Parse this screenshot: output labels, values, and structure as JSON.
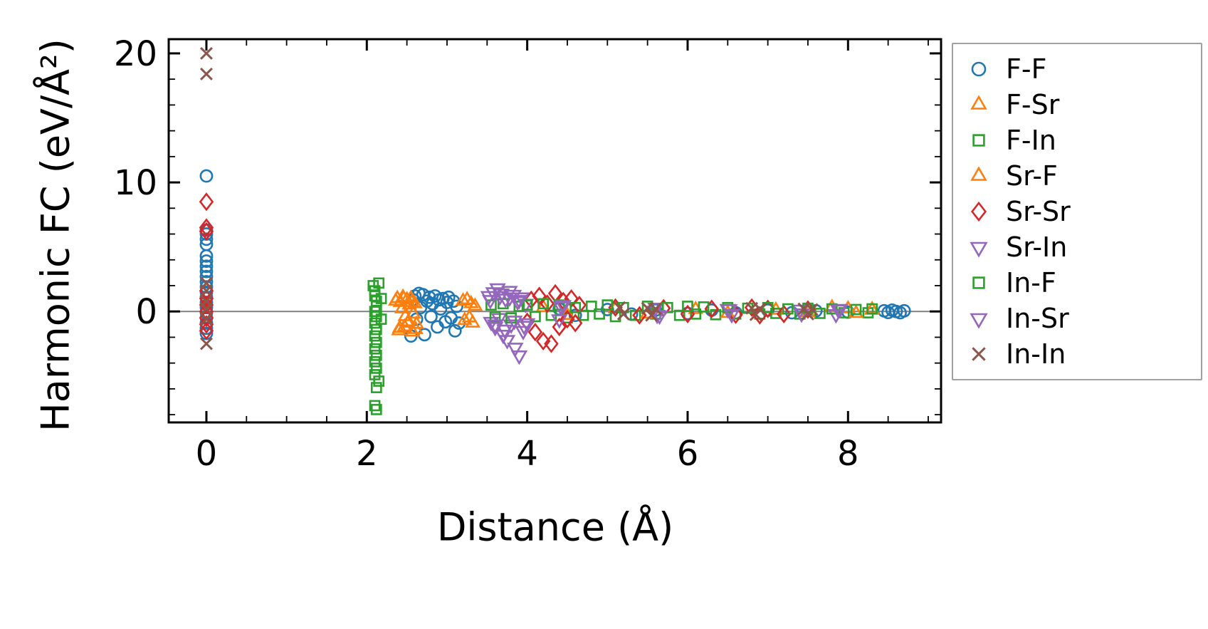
{
  "figure": {
    "background": "#ffffff",
    "axes": {
      "spine_color": "#000000",
      "tick_color": "#000000"
    }
  },
  "chart_data": {
    "type": "scatter",
    "title": "",
    "xlabel": "Distance (Å)",
    "ylabel": "Harmonic FC (eV/Å²)",
    "xlim": [
      -0.47,
      9.16
    ],
    "ylim": [
      -8.6,
      21.1
    ],
    "xticks": [
      0,
      2,
      4,
      6,
      8
    ],
    "yticks": [
      0,
      10,
      20
    ],
    "xticks_minor": [
      0.5,
      1.0,
      1.5,
      2.5,
      3.0,
      3.5,
      4.5,
      5.0,
      5.5,
      6.5,
      7.0,
      7.5,
      8.5,
      9.0
    ],
    "yticks_minor": [
      -8,
      -6,
      -4,
      -2,
      2,
      4,
      6,
      8,
      12,
      14,
      16,
      18
    ],
    "grid": false,
    "legend_position": "outside-right",
    "zero_line": {
      "y": 0,
      "color": "#808080"
    },
    "series": [
      {
        "name": "F-F",
        "marker": "circle",
        "color": "#1f77b4",
        "size": 18,
        "points": [
          [
            0,
            10.5
          ],
          [
            0,
            6.3
          ],
          [
            0,
            6.0
          ],
          [
            0,
            5.6
          ],
          [
            0,
            5.2
          ],
          [
            0,
            4.3
          ],
          [
            0,
            3.9
          ],
          [
            0,
            3.5
          ],
          [
            0,
            3.1
          ],
          [
            0,
            2.7
          ],
          [
            0,
            2.3
          ],
          [
            0,
            1.9
          ],
          [
            0,
            1.5
          ],
          [
            0,
            1.1
          ],
          [
            0,
            0.7
          ],
          [
            0,
            0.3
          ],
          [
            0,
            -0.1
          ],
          [
            0,
            -0.5
          ],
          [
            0,
            -0.9
          ],
          [
            0,
            -1.3
          ],
          [
            0,
            -1.7
          ],
          [
            2.55,
            -1.9
          ],
          [
            2.58,
            0.9
          ],
          [
            2.6,
            1.2
          ],
          [
            2.62,
            -0.6
          ],
          [
            2.65,
            1.4
          ],
          [
            2.67,
            0.3
          ],
          [
            2.7,
            1.3
          ],
          [
            2.72,
            -1.8
          ],
          [
            2.75,
            0.8
          ],
          [
            2.78,
            1.1
          ],
          [
            2.8,
            -0.4
          ],
          [
            2.82,
            0.6
          ],
          [
            2.85,
            1.2
          ],
          [
            2.88,
            -1.2
          ],
          [
            2.9,
            0.9
          ],
          [
            2.92,
            0.2
          ],
          [
            2.95,
            1.0
          ],
          [
            2.98,
            -0.8
          ],
          [
            3.0,
            0.7
          ],
          [
            3.02,
            1.1
          ],
          [
            3.05,
            -0.5
          ],
          [
            3.08,
            0.8
          ],
          [
            3.1,
            -1.5
          ],
          [
            3.12,
            0.4
          ],
          [
            3.15,
            -0.9
          ],
          [
            4.4,
            0.2
          ],
          [
            4.6,
            -0.3
          ],
          [
            5.0,
            0.15
          ],
          [
            5.3,
            -0.2
          ],
          [
            5.6,
            0.1
          ],
          [
            6.0,
            -0.15
          ],
          [
            6.3,
            0.1
          ],
          [
            6.6,
            -0.1
          ],
          [
            7.0,
            0.1
          ],
          [
            7.3,
            -0.1
          ],
          [
            7.6,
            0.05
          ],
          [
            8.0,
            -0.05
          ],
          [
            8.45,
            0.05
          ],
          [
            8.5,
            -0.08
          ],
          [
            8.55,
            0.1
          ],
          [
            8.6,
            0.0
          ],
          [
            8.65,
            -0.1
          ],
          [
            8.7,
            0.05
          ]
        ]
      },
      {
        "name": "F-Sr",
        "marker": "triangle-up",
        "color": "#ff7f0e",
        "size": 20,
        "points": [
          [
            2.38,
            1.0
          ],
          [
            2.4,
            -1.5
          ],
          [
            2.42,
            0.7
          ],
          [
            2.44,
            0.2
          ],
          [
            2.45,
            1.1
          ],
          [
            2.47,
            -1.2
          ],
          [
            2.48,
            -0.4
          ],
          [
            2.5,
            0.9
          ],
          [
            2.52,
            -0.8
          ],
          [
            2.53,
            0.5
          ],
          [
            2.55,
            1.0
          ],
          [
            2.57,
            -1.6
          ],
          [
            2.58,
            -0.2
          ],
          [
            2.6,
            0.6
          ],
          [
            2.62,
            -1.0
          ],
          [
            4.2,
            0.3
          ],
          [
            5.1,
            0.2
          ],
          [
            6.1,
            0.15
          ],
          [
            7.1,
            0.1
          ],
          [
            7.8,
            0.3
          ],
          [
            8.0,
            0.2
          ],
          [
            8.3,
            0.1
          ]
        ]
      },
      {
        "name": "F-In",
        "marker": "square",
        "color": "#2ca02c",
        "size": 16,
        "points": [
          [
            2.08,
            2.0
          ],
          [
            2.1,
            1.6
          ],
          [
            2.1,
            1.2
          ],
          [
            2.12,
            0.8
          ],
          [
            2.12,
            0.4
          ],
          [
            2.1,
            0.0
          ],
          [
            2.12,
            -0.4
          ],
          [
            2.1,
            -0.9
          ],
          [
            2.12,
            -1.4
          ],
          [
            2.1,
            -1.9
          ],
          [
            2.12,
            -2.4
          ],
          [
            2.1,
            -2.9
          ],
          [
            2.12,
            -3.4
          ],
          [
            2.1,
            -3.9
          ],
          [
            2.12,
            -4.4
          ],
          [
            2.1,
            -4.9
          ],
          [
            2.15,
            -5.4
          ],
          [
            2.12,
            -5.9
          ],
          [
            2.1,
            -7.3
          ],
          [
            2.12,
            -7.6
          ],
          [
            2.15,
            2.2
          ],
          [
            2.18,
            1.0
          ],
          [
            2.18,
            -0.6
          ],
          [
            3.55,
            0.5
          ],
          [
            3.7,
            0.6
          ],
          [
            3.9,
            0.4
          ],
          [
            4.1,
            -0.4
          ],
          [
            4.3,
            -0.3
          ],
          [
            4.5,
            -0.5
          ],
          [
            4.7,
            -0.3
          ],
          [
            4.9,
            -0.2
          ],
          [
            5.1,
            -0.4
          ],
          [
            5.35,
            -0.3
          ],
          [
            5.6,
            -0.2
          ],
          [
            5.9,
            -0.3
          ],
          [
            6.1,
            -0.2
          ],
          [
            6.35,
            -0.25
          ],
          [
            6.6,
            -0.2
          ],
          [
            6.9,
            -0.2
          ],
          [
            7.1,
            -0.15
          ],
          [
            7.4,
            -0.2
          ],
          [
            7.65,
            -0.15
          ],
          [
            7.95,
            -0.1
          ],
          [
            8.25,
            -0.1
          ]
        ]
      },
      {
        "name": "Sr-F",
        "marker": "triangle-up",
        "color": "#ff7f0e",
        "size": 20,
        "points": [
          [
            2.36,
            0.8
          ],
          [
            2.41,
            -1.3
          ],
          [
            2.46,
            1.0
          ],
          [
            2.51,
            -0.9
          ],
          [
            2.56,
            0.7
          ],
          [
            2.61,
            -1.4
          ],
          [
            3.2,
            0.8
          ],
          [
            3.22,
            -0.7
          ],
          [
            3.25,
            0.9
          ],
          [
            3.28,
            -0.5
          ],
          [
            3.3,
            0.6
          ],
          [
            3.32,
            -0.9
          ],
          [
            3.35,
            0.4
          ],
          [
            4.5,
            -0.3
          ],
          [
            5.5,
            -0.2
          ],
          [
            6.5,
            -0.15
          ],
          [
            7.5,
            -0.1
          ],
          [
            8.1,
            -0.15
          ],
          [
            8.3,
            0.15
          ]
        ]
      },
      {
        "name": "Sr-Sr",
        "marker": "diamond",
        "color": "#d62728",
        "size": 22,
        "points": [
          [
            0,
            8.5
          ],
          [
            0,
            6.5
          ],
          [
            0,
            6.2
          ],
          [
            0,
            1.6
          ],
          [
            0,
            1.0
          ],
          [
            0,
            0.5
          ],
          [
            0,
            0.0
          ],
          [
            0,
            -0.5
          ],
          [
            0,
            -1.0
          ],
          [
            0,
            -1.5
          ],
          [
            4.0,
            -0.8
          ],
          [
            4.05,
            0.9
          ],
          [
            4.1,
            -1.6
          ],
          [
            4.15,
            1.2
          ],
          [
            4.2,
            -2.3
          ],
          [
            4.25,
            0.6
          ],
          [
            4.3,
            -2.5
          ],
          [
            4.35,
            1.4
          ],
          [
            4.4,
            -1.2
          ],
          [
            4.45,
            0.8
          ],
          [
            4.5,
            -0.6
          ],
          [
            4.55,
            1.0
          ],
          [
            4.6,
            -0.9
          ],
          [
            4.65,
            0.5
          ],
          [
            5.1,
            0.3
          ],
          [
            5.4,
            -0.3
          ],
          [
            5.7,
            0.25
          ],
          [
            6.0,
            -0.2
          ],
          [
            6.3,
            0.2
          ],
          [
            6.6,
            -0.25
          ],
          [
            6.8,
            0.3
          ],
          [
            6.9,
            -0.3
          ],
          [
            7.0,
            0.2
          ],
          [
            7.2,
            -0.2
          ],
          [
            7.5,
            0.15
          ]
        ]
      },
      {
        "name": "Sr-In",
        "marker": "triangle-down",
        "color": "#9467bd",
        "size": 22,
        "points": [
          [
            3.52,
            1.2
          ],
          [
            3.55,
            -0.8
          ],
          [
            3.58,
            1.5
          ],
          [
            3.6,
            -1.2
          ],
          [
            3.63,
            1.8
          ],
          [
            3.65,
            -0.5
          ],
          [
            3.68,
            1.4
          ],
          [
            3.7,
            -1.8
          ],
          [
            3.73,
            1.0
          ],
          [
            3.75,
            -2.2
          ],
          [
            3.78,
            1.6
          ],
          [
            3.8,
            -1.0
          ],
          [
            3.83,
            1.3
          ],
          [
            3.85,
            -2.8
          ],
          [
            3.88,
            0.8
          ],
          [
            3.9,
            -3.4
          ],
          [
            3.93,
            1.1
          ],
          [
            3.95,
            -1.5
          ],
          [
            3.98,
            0.6
          ],
          [
            4.0,
            -0.9
          ],
          [
            4.4,
            -0.6
          ],
          [
            5.6,
            0.3
          ],
          [
            6.5,
            0.2
          ],
          [
            7.4,
            0.15
          ],
          [
            7.85,
            -0.2
          ]
        ]
      },
      {
        "name": "In-F",
        "marker": "square",
        "color": "#2ca02c",
        "size": 16,
        "points": [
          [
            3.6,
            -0.4
          ],
          [
            3.8,
            -0.5
          ],
          [
            4.0,
            0.5
          ],
          [
            4.2,
            0.6
          ],
          [
            4.4,
            0.5
          ],
          [
            4.6,
            0.3
          ],
          [
            4.8,
            0.4
          ],
          [
            5.0,
            0.5
          ],
          [
            5.2,
            0.3
          ],
          [
            5.5,
            0.4
          ],
          [
            5.75,
            0.3
          ],
          [
            6.0,
            0.4
          ],
          [
            6.2,
            0.35
          ],
          [
            6.5,
            0.3
          ],
          [
            6.75,
            0.25
          ],
          [
            7.0,
            0.3
          ],
          [
            7.25,
            0.2
          ],
          [
            7.5,
            0.25
          ],
          [
            7.8,
            0.2
          ],
          [
            8.1,
            0.15
          ],
          [
            8.3,
            0.2
          ]
        ]
      },
      {
        "name": "In-Sr",
        "marker": "triangle-down",
        "color": "#9467bd",
        "size": 22,
        "points": [
          [
            3.54,
            0.9
          ],
          [
            3.6,
            -1.0
          ],
          [
            3.66,
            1.2
          ],
          [
            3.72,
            -1.4
          ],
          [
            3.78,
            1.1
          ],
          [
            3.84,
            -0.7
          ],
          [
            3.9,
            0.9
          ],
          [
            3.96,
            -1.1
          ],
          [
            4.42,
            0.4
          ],
          [
            4.45,
            0.5
          ],
          [
            5.62,
            -0.25
          ],
          [
            5.65,
            -0.3
          ],
          [
            6.52,
            0.18
          ],
          [
            6.55,
            -0.2
          ],
          [
            7.42,
            -0.15
          ],
          [
            7.88,
            0.15
          ],
          [
            7.9,
            0.2
          ]
        ]
      },
      {
        "name": "In-In",
        "marker": "x",
        "color": "#8c564b",
        "size": 22,
        "points": [
          [
            0,
            20.0
          ],
          [
            0,
            18.4
          ],
          [
            0,
            2.2
          ],
          [
            0,
            1.6
          ],
          [
            0,
            0.8
          ],
          [
            0,
            0.2
          ],
          [
            0,
            -0.6
          ],
          [
            0,
            -2.5
          ],
          [
            5.15,
            0.3
          ],
          [
            5.2,
            -0.2
          ],
          [
            5.5,
            0.25
          ],
          [
            5.55,
            -0.3
          ],
          [
            5.6,
            0.2
          ],
          [
            6.8,
            0.25
          ],
          [
            6.85,
            -0.25
          ],
          [
            6.9,
            0.2
          ],
          [
            7.45,
            0.2
          ],
          [
            7.5,
            -0.2
          ],
          [
            7.55,
            0.15
          ]
        ]
      }
    ]
  }
}
